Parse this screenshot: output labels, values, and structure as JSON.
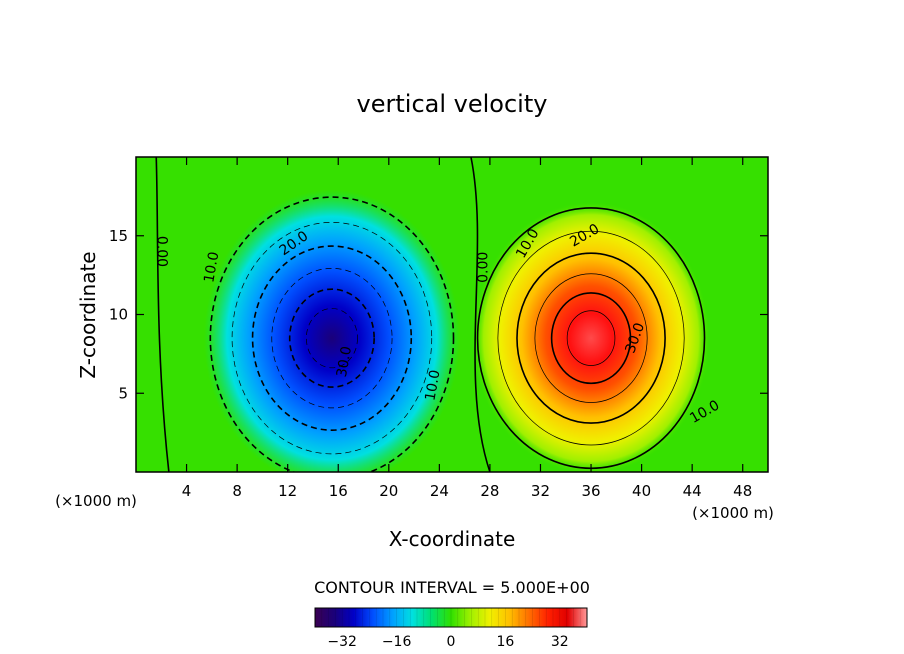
{
  "chart_data": {
    "type": "heatmap",
    "title": "vertical velocity",
    "xlabel": "X-coordinate",
    "ylabel": "Z-coordinate",
    "x_unit": "(×1000 m)",
    "y_unit": "(×1000 m)",
    "xlim": [
      0,
      50
    ],
    "ylim": [
      0,
      20
    ],
    "x_ticks": [
      4,
      8,
      12,
      16,
      20,
      24,
      28,
      32,
      36,
      40,
      44,
      48
    ],
    "y_ticks": [
      5,
      10,
      15
    ],
    "contour_interval_text": "CONTOUR INTERVAL = 5.000E+00",
    "contour_labels": [
      {
        "text": "0.00",
        "x": 2.0,
        "z": 14.0,
        "angle": 90
      },
      {
        "text": "10.0",
        "x": 6.0,
        "z": 13.0,
        "angle": -80
      },
      {
        "text": "20.0",
        "x": 12.5,
        "z": 14.5,
        "angle": -35
      },
      {
        "text": "30.0",
        "x": 16.5,
        "z": 7.0,
        "angle": -80
      },
      {
        "text": "10.0",
        "x": 23.5,
        "z": 5.5,
        "angle": -80
      },
      {
        "text": "0.00",
        "x": 27.5,
        "z": 13.0,
        "angle": -90
      },
      {
        "text": "10.0",
        "x": 31.0,
        "z": 14.5,
        "angle": -60
      },
      {
        "text": "20.0",
        "x": 35.5,
        "z": 15.0,
        "angle": -30
      },
      {
        "text": "30.0",
        "x": 39.5,
        "z": 8.5,
        "angle": -70
      },
      {
        "text": "10.0",
        "x": 45.0,
        "z": 3.8,
        "angle": -30
      }
    ],
    "cells": [
      {
        "center_x": 15.5,
        "center_z": 8.5,
        "peak": -35,
        "sx": 7.5,
        "sz": 6.5
      },
      {
        "center_x": 36.0,
        "center_z": 8.5,
        "peak": 35,
        "sx": 7.0,
        "sz": 6.0
      }
    ],
    "colorbar": {
      "ticks": [
        -32,
        -16,
        0,
        16,
        32
      ],
      "tick_labels": [
        "−32",
        "−16",
        "0",
        "16",
        "32"
      ],
      "range": [
        -40,
        40
      ],
      "colors": [
        "#3a0052",
        "#1a007a",
        "#0000c8",
        "#0050ff",
        "#00a0ff",
        "#00e0e0",
        "#00e070",
        "#30e000",
        "#a0f000",
        "#f0f000",
        "#ffc000",
        "#ff7000",
        "#ff2000",
        "#e00000",
        "#ff9a9a"
      ]
    }
  }
}
